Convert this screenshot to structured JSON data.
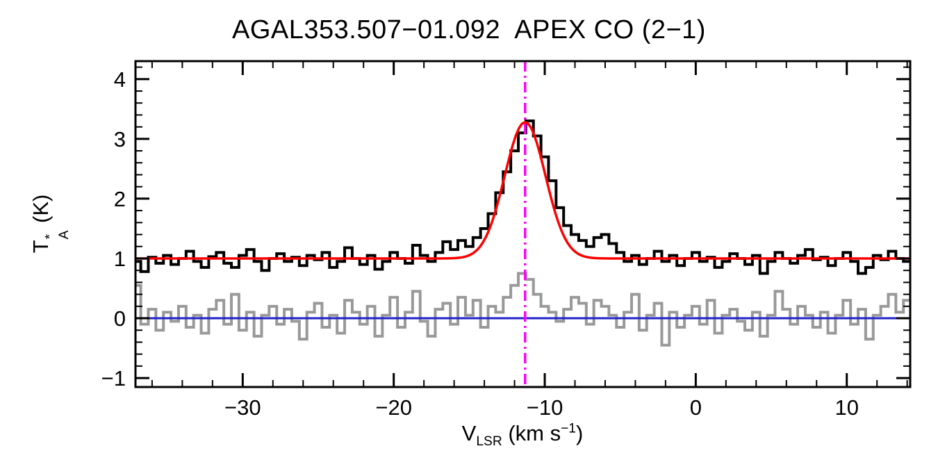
{
  "chart_data": {
    "type": "line",
    "title": "AGAL353.507−01.092  APEX CO (2−1)",
    "xlabel": "V_LSR (km s^-1)",
    "ylabel": "T*_A (K)",
    "xlim": [
      -37.1,
      14.2
    ],
    "ylim": [
      -1.15,
      4.3
    ],
    "grid": false,
    "x_major_ticks": [
      -30,
      -20,
      -10,
      0,
      10
    ],
    "x_tick_labels": [
      "−30",
      "−20",
      "−10",
      "0",
      "10"
    ],
    "x_minor_step": 2,
    "y_major_ticks": [
      -1,
      0,
      1,
      2,
      3,
      4
    ],
    "y_tick_labels": [
      "−1",
      "0",
      "1",
      "2",
      "3",
      "4"
    ],
    "y_minor_step": 0.2,
    "x_start": -37.0,
    "x_step": 0.5,
    "spectrum": [
      0.95,
      0.78,
      1.02,
      0.92,
      1.05,
      0.9,
      1.0,
      1.12,
      0.95,
      0.85,
      1.03,
      1.1,
      0.92,
      0.85,
      1.05,
      1.15,
      0.95,
      0.8,
      1.0,
      1.08,
      0.95,
      1.02,
      0.88,
      1.05,
      0.98,
      1.1,
      0.85,
      0.95,
      1.18,
      1.0,
      0.9,
      1.05,
      0.82,
      0.95,
      1.1,
      1.0,
      0.92,
      1.22,
      1.05,
      0.95,
      1.1,
      1.28,
      1.15,
      1.3,
      1.2,
      1.35,
      1.5,
      1.75,
      2.1,
      2.45,
      2.8,
      3.1,
      3.3,
      3.05,
      2.7,
      2.3,
      1.85,
      1.55,
      1.4,
      1.3,
      1.2,
      1.35,
      1.4,
      1.25,
      1.1,
      0.95,
      1.05,
      0.9,
      1.0,
      1.12,
      0.95,
      1.05,
      0.88,
      1.0,
      1.1,
      0.95,
      1.02,
      0.85,
      0.95,
      1.08,
      1.0,
      0.9,
      1.05,
      0.75,
      0.95,
      1.1,
      1.0,
      0.92,
      1.05,
      1.15,
      0.98,
      1.02,
      0.88,
      1.0,
      1.1,
      0.95,
      0.75,
      0.85,
      1.05,
      0.98,
      1.12,
      1.0,
      0.95
    ],
    "residual": [
      0.55,
      -0.1,
      0.15,
      -0.2,
      0.1,
      -0.05,
      0.2,
      -0.15,
      0.05,
      -0.25,
      0.15,
      0.3,
      -0.1,
      0.4,
      -0.2,
      0.1,
      -0.3,
      0.05,
      0.2,
      -0.1,
      0.15,
      -0.05,
      -0.35,
      0.1,
      0.25,
      -0.15,
      0.05,
      -0.25,
      0.3,
      0.1,
      -0.1,
      0.2,
      -0.3,
      0.05,
      0.35,
      -0.15,
      0.1,
      0.45,
      -0.05,
      -0.3,
      0.15,
      0.25,
      -0.1,
      0.35,
      0.05,
      0.3,
      -0.15,
      0.2,
      0.1,
      0.35,
      0.55,
      0.75,
      0.65,
      0.4,
      0.2,
      0.1,
      -0.05,
      0.15,
      0.35,
      0.25,
      -0.1,
      0.3,
      0.2,
      0.05,
      -0.15,
      0.1,
      0.4,
      -0.2,
      0.05,
      0.25,
      -0.45,
      0.1,
      -0.15,
      0.05,
      0.2,
      -0.1,
      0.3,
      -0.25,
      0.05,
      0.15,
      -0.05,
      -0.2,
      0.1,
      -0.3,
      0.05,
      0.45,
      0.15,
      -0.1,
      0.2,
      0.05,
      -0.15,
      0.1,
      -0.25,
      0.05,
      0.3,
      -0.1,
      0.15,
      -0.35,
      0.05,
      0.2,
      0.4,
      0.1,
      0.3
    ],
    "fit": {
      "type": "gaussian",
      "baseline": 1.0,
      "amplitude": 2.28,
      "center": -11.3,
      "sigma": 1.35
    },
    "vline": {
      "x": -11.3,
      "style": "dash-dot"
    },
    "hline": {
      "y": 0.0
    },
    "colors": {
      "spectrum": "#000000",
      "residual": "#999999",
      "fit": "#ff0000",
      "vline": "#ff00ff",
      "hline": "#2222cc",
      "axes": "#000000"
    }
  },
  "labels": {
    "y_base": "T",
    "y_sup": "*",
    "y_sub": "A",
    "y_unit": " (K)",
    "x_base": "V",
    "x_sub": "LSR",
    "x_mid": " (km s",
    "x_sup": "−1",
    "x_end": ")"
  }
}
